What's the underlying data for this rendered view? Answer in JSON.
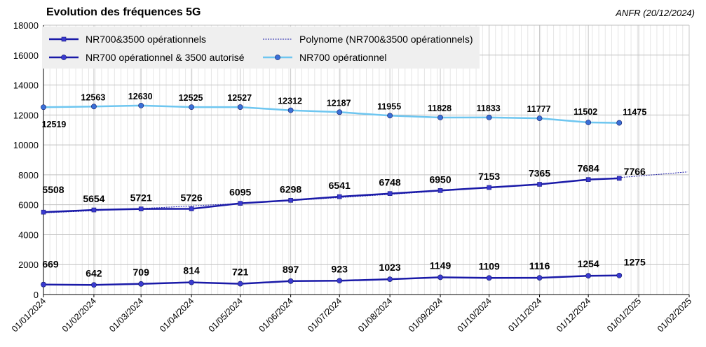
{
  "header": {
    "title": "Evolution des fréquences 5G",
    "source": "ANFR (20/12/2024)"
  },
  "chart_data": {
    "type": "line",
    "ylim": [
      0,
      18000
    ],
    "yticks": [
      0,
      2000,
      4000,
      6000,
      8000,
      10000,
      12000,
      14000,
      16000,
      18000
    ],
    "xticks": [
      "01/01/2024",
      "01/02/2024",
      "01/03/2024",
      "01/04/2024",
      "01/05/2024",
      "01/06/2024",
      "01/07/2024",
      "01/08/2024",
      "01/09/2024",
      "01/10/2024",
      "01/11/2024",
      "01/12/2024",
      "01/01/2025",
      "01/02/2025"
    ],
    "x": [
      "01/01/2024",
      "01/02/2024",
      "01/03/2024",
      "01/04/2024",
      "01/05/2024",
      "01/06/2024",
      "01/07/2024",
      "01/08/2024",
      "01/09/2024",
      "01/10/2024",
      "01/11/2024",
      "01/12/2024",
      "20/12/2024"
    ],
    "grid": true,
    "legend_position": "top-left",
    "series": [
      {
        "name": "NR700 opérationnel",
        "color": "#6ec6f0",
        "values": [
          12519,
          12563,
          12630,
          12525,
          12527,
          12312,
          12187,
          11955,
          11828,
          11833,
          11777,
          11502,
          11475
        ]
      },
      {
        "name": "NR700&3500 opérationnels",
        "color": "#1a1aa8",
        "values": [
          5508,
          5654,
          5721,
          5726,
          6095,
          6298,
          6541,
          6748,
          6950,
          7153,
          7365,
          7684,
          7766
        ]
      },
      {
        "name": "NR700 opérationnel & 3500 autorisé",
        "color": "#1a1aa8",
        "values": [
          669,
          642,
          709,
          814,
          721,
          897,
          923,
          1023,
          1149,
          1109,
          1116,
          1254,
          1275
        ]
      }
    ],
    "trendline": {
      "name": "Polynome (NR700&3500 opérationnels)",
      "color": "#1a1aa8"
    }
  }
}
